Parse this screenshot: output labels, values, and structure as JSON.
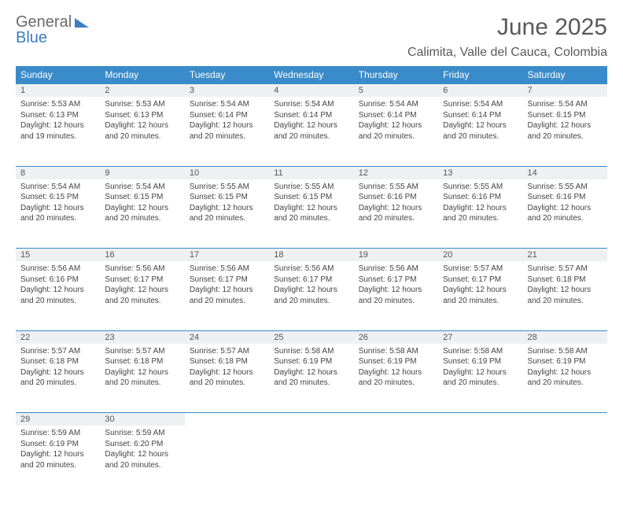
{
  "logo": {
    "word1": "General",
    "word2": "Blue"
  },
  "title": "June 2025",
  "location": "Calimita, Valle del Cauca, Colombia",
  "colors": {
    "header_bg": "#3a8bc9",
    "header_text": "#ffffff",
    "daynum_bg": "#eef0f1",
    "border": "#3a8bc9",
    "title_color": "#595959",
    "body_text": "#444444"
  },
  "weekdays": [
    "Sunday",
    "Monday",
    "Tuesday",
    "Wednesday",
    "Thursday",
    "Friday",
    "Saturday"
  ],
  "weeks": [
    [
      {
        "n": "1",
        "sr": "5:53 AM",
        "ss": "6:13 PM",
        "dl": "12 hours and 19 minutes."
      },
      {
        "n": "2",
        "sr": "5:53 AM",
        "ss": "6:13 PM",
        "dl": "12 hours and 20 minutes."
      },
      {
        "n": "3",
        "sr": "5:54 AM",
        "ss": "6:14 PM",
        "dl": "12 hours and 20 minutes."
      },
      {
        "n": "4",
        "sr": "5:54 AM",
        "ss": "6:14 PM",
        "dl": "12 hours and 20 minutes."
      },
      {
        "n": "5",
        "sr": "5:54 AM",
        "ss": "6:14 PM",
        "dl": "12 hours and 20 minutes."
      },
      {
        "n": "6",
        "sr": "5:54 AM",
        "ss": "6:14 PM",
        "dl": "12 hours and 20 minutes."
      },
      {
        "n": "7",
        "sr": "5:54 AM",
        "ss": "6:15 PM",
        "dl": "12 hours and 20 minutes."
      }
    ],
    [
      {
        "n": "8",
        "sr": "5:54 AM",
        "ss": "6:15 PM",
        "dl": "12 hours and 20 minutes."
      },
      {
        "n": "9",
        "sr": "5:54 AM",
        "ss": "6:15 PM",
        "dl": "12 hours and 20 minutes."
      },
      {
        "n": "10",
        "sr": "5:55 AM",
        "ss": "6:15 PM",
        "dl": "12 hours and 20 minutes."
      },
      {
        "n": "11",
        "sr": "5:55 AM",
        "ss": "6:15 PM",
        "dl": "12 hours and 20 minutes."
      },
      {
        "n": "12",
        "sr": "5:55 AM",
        "ss": "6:16 PM",
        "dl": "12 hours and 20 minutes."
      },
      {
        "n": "13",
        "sr": "5:55 AM",
        "ss": "6:16 PM",
        "dl": "12 hours and 20 minutes."
      },
      {
        "n": "14",
        "sr": "5:55 AM",
        "ss": "6:16 PM",
        "dl": "12 hours and 20 minutes."
      }
    ],
    [
      {
        "n": "15",
        "sr": "5:56 AM",
        "ss": "6:16 PM",
        "dl": "12 hours and 20 minutes."
      },
      {
        "n": "16",
        "sr": "5:56 AM",
        "ss": "6:17 PM",
        "dl": "12 hours and 20 minutes."
      },
      {
        "n": "17",
        "sr": "5:56 AM",
        "ss": "6:17 PM",
        "dl": "12 hours and 20 minutes."
      },
      {
        "n": "18",
        "sr": "5:56 AM",
        "ss": "6:17 PM",
        "dl": "12 hours and 20 minutes."
      },
      {
        "n": "19",
        "sr": "5:56 AM",
        "ss": "6:17 PM",
        "dl": "12 hours and 20 minutes."
      },
      {
        "n": "20",
        "sr": "5:57 AM",
        "ss": "6:17 PM",
        "dl": "12 hours and 20 minutes."
      },
      {
        "n": "21",
        "sr": "5:57 AM",
        "ss": "6:18 PM",
        "dl": "12 hours and 20 minutes."
      }
    ],
    [
      {
        "n": "22",
        "sr": "5:57 AM",
        "ss": "6:18 PM",
        "dl": "12 hours and 20 minutes."
      },
      {
        "n": "23",
        "sr": "5:57 AM",
        "ss": "6:18 PM",
        "dl": "12 hours and 20 minutes."
      },
      {
        "n": "24",
        "sr": "5:57 AM",
        "ss": "6:18 PM",
        "dl": "12 hours and 20 minutes."
      },
      {
        "n": "25",
        "sr": "5:58 AM",
        "ss": "6:19 PM",
        "dl": "12 hours and 20 minutes."
      },
      {
        "n": "26",
        "sr": "5:58 AM",
        "ss": "6:19 PM",
        "dl": "12 hours and 20 minutes."
      },
      {
        "n": "27",
        "sr": "5:58 AM",
        "ss": "6:19 PM",
        "dl": "12 hours and 20 minutes."
      },
      {
        "n": "28",
        "sr": "5:58 AM",
        "ss": "6:19 PM",
        "dl": "12 hours and 20 minutes."
      }
    ],
    [
      {
        "n": "29",
        "sr": "5:59 AM",
        "ss": "6:19 PM",
        "dl": "12 hours and 20 minutes."
      },
      {
        "n": "30",
        "sr": "5:59 AM",
        "ss": "6:20 PM",
        "dl": "12 hours and 20 minutes."
      },
      null,
      null,
      null,
      null,
      null
    ]
  ],
  "labels": {
    "sunrise": "Sunrise:",
    "sunset": "Sunset:",
    "daylight": "Daylight:"
  }
}
